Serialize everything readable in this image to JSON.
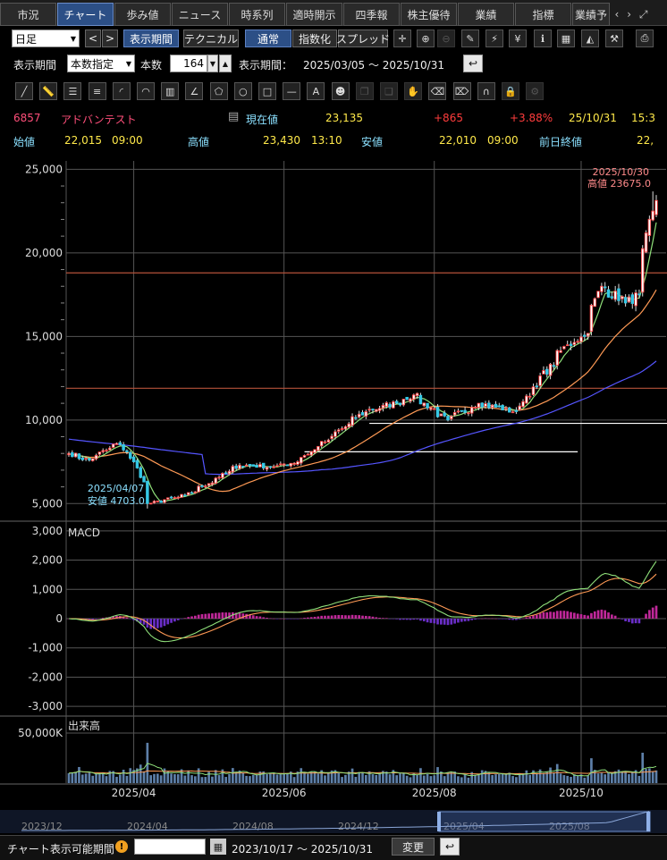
{
  "tabs": [
    {
      "label": "市況",
      "w": 64
    },
    {
      "label": "チャート",
      "w": 64,
      "active": true
    },
    {
      "label": "歩み値",
      "w": 64
    },
    {
      "label": "ニュース",
      "w": 64
    },
    {
      "label": "時系列",
      "w": 64
    },
    {
      "label": "適時開示",
      "w": 64
    },
    {
      "label": "四季報",
      "w": 64
    },
    {
      "label": "株主優待",
      "w": 64
    },
    {
      "label": "業績",
      "w": 64
    },
    {
      "label": "指標",
      "w": 64
    },
    {
      "label": "業績予",
      "w": 42
    }
  ],
  "tab_arrows": [
    "‹",
    "›",
    "⤢"
  ],
  "toolbar": {
    "period_select": "日足",
    "prev": "<",
    "next": ">",
    "display_period": "表示期間",
    "technical": "テクニカル",
    "normal": "通常",
    "index": "指数化",
    "spread": "スプレッド"
  },
  "period_row": {
    "label": "表示期間",
    "mode": "本数指定",
    "count_label": "本数",
    "count": "164",
    "range_label": "表示期間：",
    "range": "2025/03/05 ～ 2025/10/31"
  },
  "stock": {
    "code": "6857",
    "name": "アドバンテスト",
    "current_label": "現在値",
    "current": "23,135",
    "change": "+865",
    "change_pct": "+3.88%",
    "date": "25/10/31",
    "time": "15:3",
    "open_label": "始値",
    "open": "22,015",
    "open_time": "09:00",
    "high_label": "高値",
    "high": "23,430",
    "high_time": "13:10",
    "low_label": "安値",
    "low": "22,010",
    "low_time": "09:00",
    "prev_label": "前日終値",
    "prev": "22,"
  },
  "colors": {
    "up": "#ff3c3c",
    "down": "#35c8e6",
    "ma_short": "#8fe07a",
    "ma_mid": "#ff9a55",
    "ma_long": "#5555ff",
    "macd_pos": "#c0289a",
    "macd_neg": "#6a2ec8",
    "accent": "#2c4f86"
  },
  "chart_data": [
    {
      "type": "candlestick",
      "title": "",
      "x_ticks": [
        "2025/04",
        "2025/06",
        "2025/08",
        "2025/10"
      ],
      "y_ticks": [
        "25,000",
        "20,000",
        "15,000",
        "10,000",
        "5,000"
      ],
      "ylim": [
        4000,
        25500
      ],
      "close_anchors": [
        {
          "date": "2025/03/05",
          "value": 8000
        },
        {
          "date": "2025/03/13",
          "value": 7600
        },
        {
          "date": "2025/03/25",
          "value": 8600
        },
        {
          "date": "2025/04/01",
          "value": 7500
        },
        {
          "date": "2025/04/07",
          "value": 5000
        },
        {
          "date": "2025/04/22",
          "value": 5500
        },
        {
          "date": "2025/05/01",
          "value": 6200
        },
        {
          "date": "2025/05/14",
          "value": 7300
        },
        {
          "date": "2025/05/28",
          "value": 7200
        },
        {
          "date": "2025/06/06",
          "value": 7500
        },
        {
          "date": "2025/06/19",
          "value": 8800
        },
        {
          "date": "2025/07/04",
          "value": 10500
        },
        {
          "date": "2025/07/17",
          "value": 11000
        },
        {
          "date": "2025/07/24",
          "value": 11500
        },
        {
          "date": "2025/08/07",
          "value": 10000
        },
        {
          "date": "2025/08/20",
          "value": 11000
        },
        {
          "date": "2025/09/04",
          "value": 10500
        },
        {
          "date": "2025/09/12",
          "value": 12000
        },
        {
          "date": "2025/09/25",
          "value": 14500
        },
        {
          "date": "2025/10/02",
          "value": 15000
        },
        {
          "date": "2025/10/09",
          "value": 18000
        },
        {
          "date": "2025/10/20",
          "value": 17000
        },
        {
          "date": "2025/10/24",
          "value": 17500
        },
        {
          "date": "2025/10/30",
          "value": 22500
        },
        {
          "date": "2025/10/31",
          "value": 23135
        }
      ],
      "annotations": [
        {
          "text": "2025/10/30",
          "detail": "高値 23675.0",
          "date": "2025/10/30",
          "value": 23675
        },
        {
          "text": "2025/04/07",
          "detail": "安値 4703.0",
          "date": "2025/04/07",
          "value": 4703
        }
      ],
      "horizontal_lines": [
        {
          "value": 18800,
          "color": "#b5523a"
        },
        {
          "value": 11900,
          "color": "#b5523a"
        },
        {
          "value": 9800,
          "color": "#ffffff"
        },
        {
          "value": 8100,
          "color": "#ffffff"
        }
      ],
      "moving_averages": [
        "short",
        "mid",
        "long"
      ]
    },
    {
      "type": "bar",
      "title": "MACD",
      "y_ticks": [
        "3,000",
        "2,000",
        "1,000",
        "0",
        "-1,000",
        "-2,000",
        "-3,000"
      ],
      "ylim": [
        -3300,
        3300
      ]
    },
    {
      "type": "bar",
      "title": "出来高",
      "y_ticks": [
        "50,000K"
      ]
    }
  ],
  "navigator": {
    "labels": [
      "2023/12",
      "2024/04",
      "2024/08",
      "2024/12",
      "2025/04",
      "2025/08"
    ]
  },
  "bottom": {
    "label": "チャート表示可能期間",
    "warn": "!",
    "range": "2023/10/17 ～ 2025/10/31",
    "change_button": "変更"
  }
}
